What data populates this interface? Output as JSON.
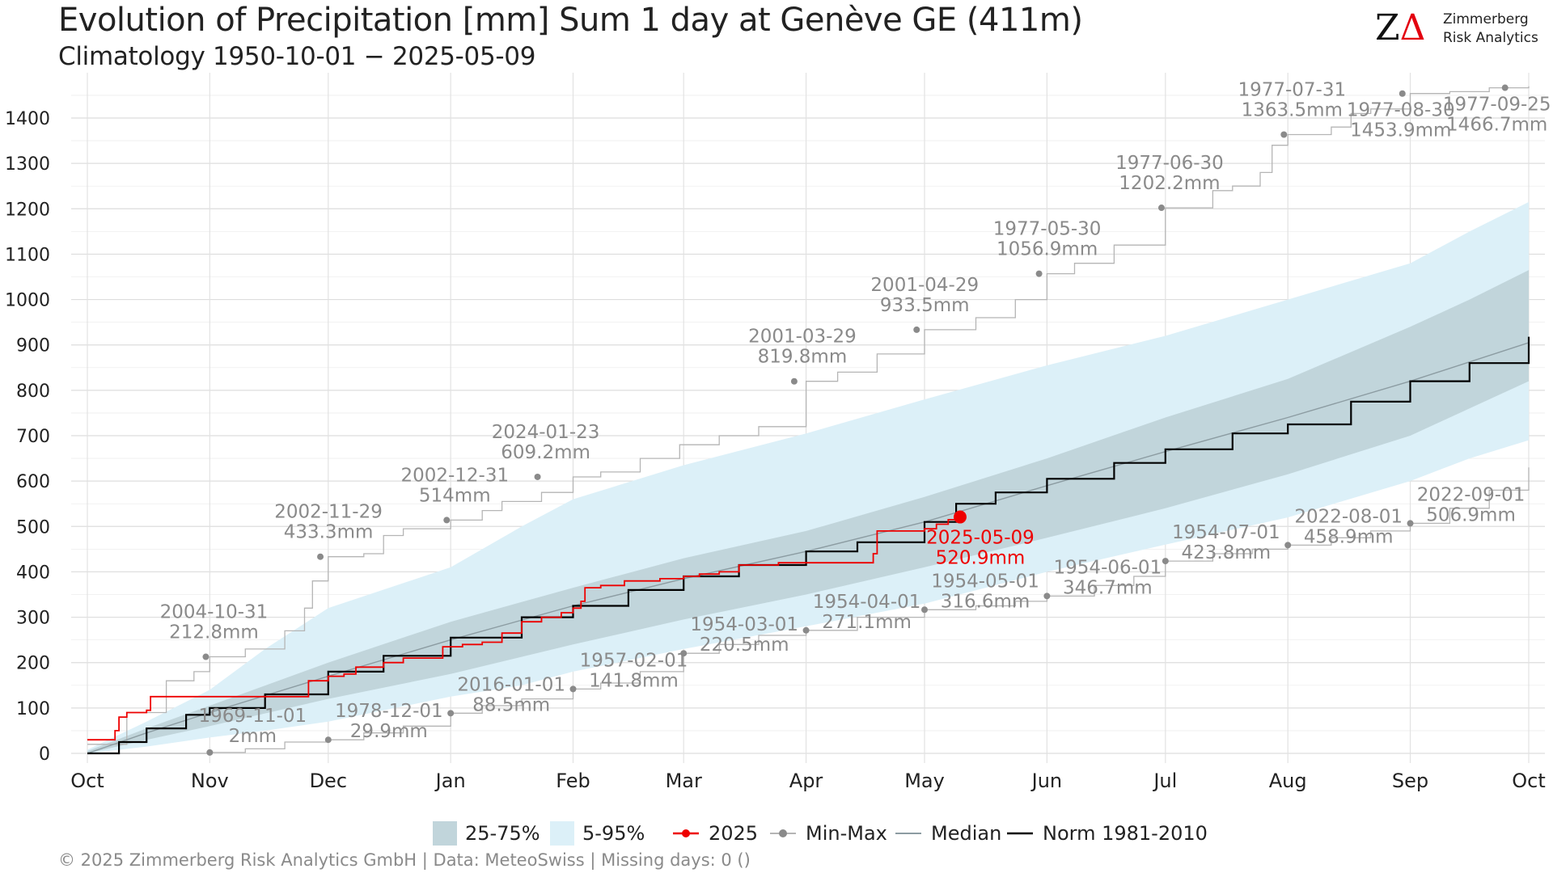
{
  "header": {
    "title": "Evolution of Precipitation [mm] Sum 1 day at Genève  GE (411m)",
    "subtitle": "Climatology 1950-10-01 − 2025-05-09"
  },
  "logo": {
    "mark_z": "Z",
    "mark_delta": "Δ",
    "line1": "Zimmerberg",
    "line2": "Risk Analytics"
  },
  "footer": "©  2025 Zimmerberg Risk Analytics GmbH | Data: MeteoSwiss | Missing days: 0 ()",
  "legend": {
    "iqr": "25-75%",
    "p5_95": "5-95%",
    "current": "2025",
    "minmax": "Min-Max",
    "median": "Median",
    "norm": "Norm 1981-2010"
  },
  "colors": {
    "iqr_band": "#c1d5db",
    "outer_band": "#dcf0f8",
    "current_line": "#ee0000",
    "minmax_line": "#b5b5b5",
    "minmax_points": "#8a8a8a",
    "median_line": "#8c9ca2",
    "norm_line": "#000000",
    "grid": "#e0e0e0"
  },
  "chart_data": {
    "type": "line",
    "title": "Evolution of Precipitation [mm] Sum 1 day at Genève  GE (411m)",
    "subtitle": "Climatology 1950-10-01 − 2025-05-09",
    "xlabel": "",
    "ylabel": "",
    "x_unit": "day of hydrological year (0 = Oct 1)",
    "ylim": [
      0,
      1450
    ],
    "yticks": [
      0,
      100,
      200,
      300,
      400,
      500,
      600,
      700,
      800,
      900,
      1000,
      1100,
      1200,
      1300,
      1400
    ],
    "month_ticks": [
      {
        "label": "Oct",
        "day": 0
      },
      {
        "label": "Nov",
        "day": 31
      },
      {
        "label": "Dec",
        "day": 61
      },
      {
        "label": "Jan",
        "day": 92
      },
      {
        "label": "Feb",
        "day": 123
      },
      {
        "label": "Mar",
        "day": 151
      },
      {
        "label": "Apr",
        "day": 182
      },
      {
        "label": "May",
        "day": 212
      },
      {
        "label": "Jun",
        "day": 243
      },
      {
        "label": "Jul",
        "day": 273
      },
      {
        "label": "Aug",
        "day": 304
      },
      {
        "label": "Sep",
        "day": 335
      },
      {
        "label": "Oct",
        "day": 365
      }
    ],
    "grid": true,
    "legend_position": "bottom",
    "bands": {
      "p5_95": [
        {
          "day": 0,
          "lo": 0,
          "hi": 8
        },
        {
          "day": 15,
          "lo": 15,
          "hi": 70
        },
        {
          "day": 31,
          "lo": 35,
          "hi": 140
        },
        {
          "day": 45,
          "lo": 50,
          "hi": 230
        },
        {
          "day": 61,
          "lo": 70,
          "hi": 320
        },
        {
          "day": 92,
          "lo": 125,
          "hi": 410
        },
        {
          "day": 110,
          "lo": 150,
          "hi": 500
        },
        {
          "day": 123,
          "lo": 180,
          "hi": 560
        },
        {
          "day": 151,
          "lo": 230,
          "hi": 635
        },
        {
          "day": 182,
          "lo": 280,
          "hi": 705
        },
        {
          "day": 212,
          "lo": 330,
          "hi": 780
        },
        {
          "day": 243,
          "lo": 400,
          "hi": 855
        },
        {
          "day": 273,
          "lo": 460,
          "hi": 920
        },
        {
          "day": 304,
          "lo": 520,
          "hi": 1000
        },
        {
          "day": 335,
          "lo": 600,
          "hi": 1080
        },
        {
          "day": 350,
          "lo": 650,
          "hi": 1150
        },
        {
          "day": 365,
          "lo": 690,
          "hi": 1215
        }
      ],
      "iqr": [
        {
          "day": 0,
          "lo": 0,
          "hi": 5
        },
        {
          "day": 15,
          "lo": 30,
          "hi": 55
        },
        {
          "day": 31,
          "lo": 60,
          "hi": 105
        },
        {
          "day": 61,
          "lo": 120,
          "hi": 200
        },
        {
          "day": 92,
          "lo": 175,
          "hi": 290
        },
        {
          "day": 123,
          "lo": 240,
          "hi": 365
        },
        {
          "day": 151,
          "lo": 295,
          "hi": 430
        },
        {
          "day": 182,
          "lo": 350,
          "hi": 490
        },
        {
          "day": 212,
          "lo": 410,
          "hi": 565
        },
        {
          "day": 243,
          "lo": 475,
          "hi": 650
        },
        {
          "day": 273,
          "lo": 540,
          "hi": 740
        },
        {
          "day": 304,
          "lo": 615,
          "hi": 825
        },
        {
          "day": 335,
          "lo": 700,
          "hi": 940
        },
        {
          "day": 350,
          "lo": 760,
          "hi": 1000
        },
        {
          "day": 365,
          "lo": 820,
          "hi": 1065
        }
      ]
    },
    "series": [
      {
        "name": "Norm 1981-2010",
        "points": [
          [
            0,
            0
          ],
          [
            8,
            25
          ],
          [
            15,
            55
          ],
          [
            25,
            85
          ],
          [
            31,
            100
          ],
          [
            45,
            130
          ],
          [
            61,
            180
          ],
          [
            75,
            215
          ],
          [
            92,
            255
          ],
          [
            110,
            300
          ],
          [
            123,
            325
          ],
          [
            137,
            360
          ],
          [
            151,
            390
          ],
          [
            165,
            415
          ],
          [
            182,
            445
          ],
          [
            195,
            465
          ],
          [
            212,
            510
          ],
          [
            220,
            550
          ],
          [
            230,
            575
          ],
          [
            243,
            605
          ],
          [
            260,
            640
          ],
          [
            273,
            670
          ],
          [
            290,
            705
          ],
          [
            304,
            725
          ],
          [
            320,
            775
          ],
          [
            335,
            820
          ],
          [
            350,
            860
          ],
          [
            365,
            918
          ]
        ]
      },
      {
        "name": "Median",
        "points": [
          [
            0,
            0
          ],
          [
            15,
            45
          ],
          [
            31,
            90
          ],
          [
            61,
            170
          ],
          [
            92,
            250
          ],
          [
            123,
            325
          ],
          [
            151,
            385
          ],
          [
            182,
            445
          ],
          [
            212,
            510
          ],
          [
            243,
            590
          ],
          [
            273,
            665
          ],
          [
            304,
            740
          ],
          [
            335,
            820
          ],
          [
            365,
            905
          ]
        ]
      },
      {
        "name": "2025",
        "points": [
          [
            0,
            30
          ],
          [
            5,
            30
          ],
          [
            7,
            50
          ],
          [
            8,
            80
          ],
          [
            10,
            90
          ],
          [
            15,
            95
          ],
          [
            16,
            125
          ],
          [
            40,
            125
          ],
          [
            42,
            125
          ],
          [
            55,
            125
          ],
          [
            56,
            160
          ],
          [
            61,
            170
          ],
          [
            65,
            175
          ],
          [
            68,
            190
          ],
          [
            75,
            200
          ],
          [
            80,
            210
          ],
          [
            90,
            235
          ],
          [
            95,
            240
          ],
          [
            100,
            245
          ],
          [
            105,
            265
          ],
          [
            110,
            290
          ],
          [
            115,
            300
          ],
          [
            120,
            310
          ],
          [
            123,
            320
          ],
          [
            125,
            335
          ],
          [
            126,
            365
          ],
          [
            130,
            370
          ],
          [
            136,
            380
          ],
          [
            145,
            385
          ],
          [
            151,
            390
          ],
          [
            155,
            395
          ],
          [
            160,
            400
          ],
          [
            165,
            415
          ],
          [
            175,
            420
          ],
          [
            185,
            420
          ],
          [
            195,
            420
          ],
          [
            199,
            440
          ],
          [
            200,
            490
          ],
          [
            205,
            490
          ],
          [
            212,
            495
          ],
          [
            215,
            505
          ],
          [
            218,
            515
          ],
          [
            221,
            520.9
          ]
        ]
      },
      {
        "name": "Max",
        "points": [
          [
            0,
            20
          ],
          [
            10,
            90
          ],
          [
            20,
            160
          ],
          [
            27,
            180
          ],
          [
            31,
            212.8
          ],
          [
            40,
            230
          ],
          [
            50,
            270
          ],
          [
            55,
            320
          ],
          [
            57,
            380
          ],
          [
            61,
            433.3
          ],
          [
            70,
            440
          ],
          [
            75,
            480
          ],
          [
            80,
            495
          ],
          [
            92,
            514
          ],
          [
            100,
            535
          ],
          [
            105,
            555
          ],
          [
            115,
            575
          ],
          [
            123,
            609.2
          ],
          [
            130,
            620
          ],
          [
            140,
            650
          ],
          [
            150,
            680
          ],
          [
            160,
            700
          ],
          [
            170,
            720
          ],
          [
            182,
            819.8
          ],
          [
            190,
            840
          ],
          [
            200,
            880
          ],
          [
            212,
            933.5
          ],
          [
            225,
            960
          ],
          [
            235,
            1000
          ],
          [
            243,
            1056.9
          ],
          [
            250,
            1080
          ],
          [
            260,
            1120
          ],
          [
            273,
            1202.2
          ],
          [
            285,
            1240
          ],
          [
            290,
            1250
          ],
          [
            297,
            1280
          ],
          [
            300,
            1340
          ],
          [
            304,
            1363.5
          ],
          [
            315,
            1380
          ],
          [
            320,
            1410
          ],
          [
            325,
            1420
          ],
          [
            335,
            1453.9
          ],
          [
            345,
            1458
          ],
          [
            355,
            1466.7
          ],
          [
            365,
            1470
          ]
        ]
      },
      {
        "name": "Min",
        "points": [
          [
            0,
            0
          ],
          [
            31,
            2
          ],
          [
            40,
            10
          ],
          [
            50,
            25
          ],
          [
            61,
            29.9
          ],
          [
            70,
            45
          ],
          [
            80,
            60
          ],
          [
            92,
            88.5
          ],
          [
            100,
            105
          ],
          [
            110,
            120
          ],
          [
            123,
            141.8
          ],
          [
            130,
            155
          ],
          [
            140,
            180
          ],
          [
            151,
            220.5
          ],
          [
            160,
            240
          ],
          [
            170,
            260
          ],
          [
            182,
            271.1
          ],
          [
            195,
            300
          ],
          [
            212,
            316.6
          ],
          [
            225,
            325
          ],
          [
            235,
            335
          ],
          [
            243,
            346.7
          ],
          [
            255,
            370
          ],
          [
            265,
            390
          ],
          [
            273,
            423.8
          ],
          [
            285,
            440
          ],
          [
            295,
            450
          ],
          [
            304,
            458.9
          ],
          [
            315,
            475
          ],
          [
            325,
            490
          ],
          [
            335,
            506.9
          ],
          [
            345,
            540
          ],
          [
            355,
            580
          ],
          [
            365,
            630
          ]
        ]
      }
    ],
    "current_point": {
      "label": "2025-05-09",
      "value_label": "520.9mm",
      "day": 221,
      "value": 520.9
    },
    "max_annotations": [
      {
        "date": "2004-10-31",
        "value_label": "212.8mm",
        "day": 30,
        "value": 212.8
      },
      {
        "date": "2002-11-29",
        "value_label": "433.3mm",
        "day": 59,
        "value": 433.3
      },
      {
        "date": "2002-12-31",
        "value_label": "514mm",
        "day": 91,
        "value": 514
      },
      {
        "date": "2024-01-23",
        "value_label": "609.2mm",
        "day": 114,
        "value": 609.2
      },
      {
        "date": "2001-03-29",
        "value_label": "819.8mm",
        "day": 179,
        "value": 819.8
      },
      {
        "date": "2001-04-29",
        "value_label": "933.5mm",
        "day": 210,
        "value": 933.5
      },
      {
        "date": "1977-05-30",
        "value_label": "1056.9mm",
        "day": 241,
        "value": 1056.9
      },
      {
        "date": "1977-06-30",
        "value_label": "1202.2mm",
        "day": 272,
        "value": 1202.2
      },
      {
        "date": "1977-07-31",
        "value_label": "1363.5mm",
        "day": 303,
        "value": 1363.5
      },
      {
        "date": "1977-08-30",
        "value_label": "1453.9mm",
        "day": 333,
        "value": 1453.9
      },
      {
        "date": "1977-09-25",
        "value_label": "1466.7mm",
        "day": 359,
        "value": 1466.7
      }
    ],
    "min_annotations": [
      {
        "date": "1969-11-01",
        "value_label": "2mm",
        "day": 31,
        "value": 2
      },
      {
        "date": "1978-12-01",
        "value_label": "29.9mm",
        "day": 61,
        "value": 29.9
      },
      {
        "date": "2016-01-01",
        "value_label": "88.5mm",
        "day": 92,
        "value": 88.5
      },
      {
        "date": "1957-02-01",
        "value_label": "141.8mm",
        "day": 123,
        "value": 141.8
      },
      {
        "date": "1954-03-01",
        "value_label": "220.5mm",
        "day": 151,
        "value": 220.5
      },
      {
        "date": "1954-04-01",
        "value_label": "271.1mm",
        "day": 182,
        "value": 271.1
      },
      {
        "date": "1954-05-01",
        "value_label": "316.6mm",
        "day": 212,
        "value": 316.6
      },
      {
        "date": "1954-06-01",
        "value_label": "346.7mm",
        "day": 243,
        "value": 346.7
      },
      {
        "date": "1954-07-01",
        "value_label": "423.8mm",
        "day": 273,
        "value": 423.8
      },
      {
        "date": "2022-08-01",
        "value_label": "458.9mm",
        "day": 304,
        "value": 458.9
      },
      {
        "date": "2022-09-01",
        "value_label": "506.9mm",
        "day": 335,
        "value": 506.9
      }
    ]
  }
}
